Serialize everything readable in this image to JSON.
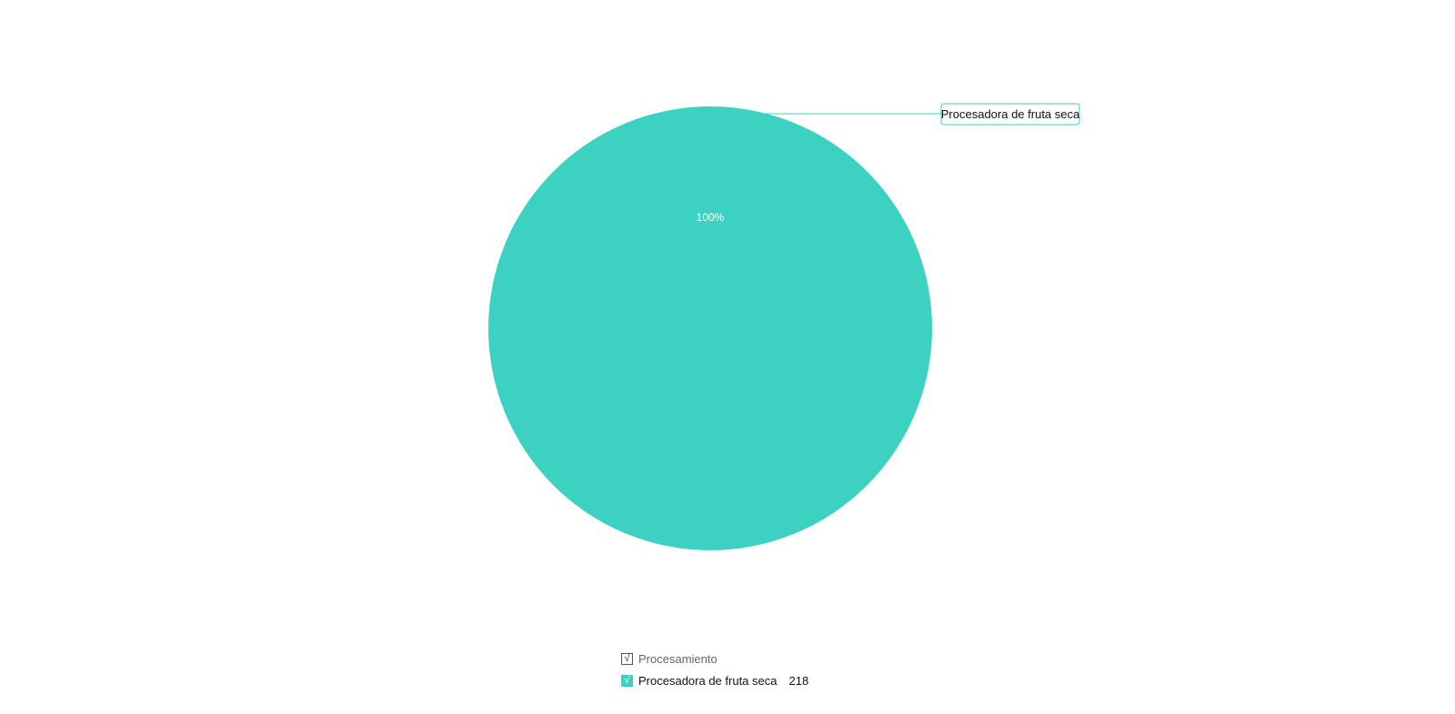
{
  "chart_data": {
    "type": "pie",
    "title": "",
    "legend_title": "Procesamiento",
    "legend_position": "bottom",
    "categories": [
      "Procesadora de fruta seca"
    ],
    "values": [
      218
    ],
    "percent_labels": [
      "100%"
    ],
    "colors": [
      "#3cd1c0"
    ]
  },
  "legend": {
    "header_check": "√",
    "item_check": "√"
  },
  "colors": {
    "slice": "#3cd1c0",
    "callout_border": "#3cd1c0"
  }
}
